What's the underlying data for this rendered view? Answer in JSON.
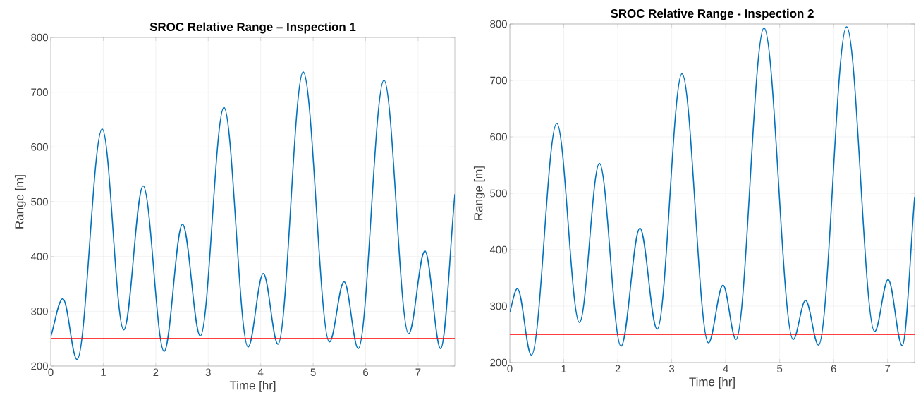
{
  "chart_data": [
    {
      "type": "line",
      "title": "SROC Relative Range – Inspection 1",
      "xlabel": "Time [hr]",
      "ylabel": "Range [m]",
      "xlim": [
        0,
        7.7
      ],
      "ylim": [
        200,
        800
      ],
      "xticks": [
        0,
        1,
        2,
        3,
        4,
        5,
        6,
        7
      ],
      "yticks": [
        200,
        300,
        400,
        500,
        600,
        700,
        800
      ],
      "grid": true,
      "series": [
        {
          "color": "#0072bd",
          "x": [
            0,
            0.23,
            0.5,
            0.98,
            1.39,
            1.76,
            2.16,
            2.51,
            2.85,
            3.3,
            3.76,
            4.05,
            4.33,
            4.81,
            5.31,
            5.59,
            5.86,
            6.35,
            6.82,
            7.13,
            7.43,
            7.7
          ],
          "values": [
            254,
            323,
            212,
            633,
            266,
            529,
            227,
            459,
            255,
            672,
            235,
            369,
            240,
            737,
            244,
            354,
            232,
            722,
            259,
            410,
            232,
            513
          ]
        }
      ],
      "ref_lines": [
        {
          "axis": "y",
          "value": 250,
          "color": "#ff0000"
        }
      ]
    },
    {
      "type": "line",
      "title": "SROC Relative Range - Inspection 2",
      "xlabel": "Time [hr]",
      "ylabel": "Range [m]",
      "xlim": [
        0,
        7.5
      ],
      "ylim": [
        200,
        800
      ],
      "xticks": [
        0,
        1,
        2,
        3,
        4,
        5,
        6,
        7
      ],
      "yticks": [
        200,
        300,
        400,
        500,
        600,
        700,
        800
      ],
      "grid": true,
      "series": [
        {
          "color": "#0072bd",
          "x": [
            0,
            0.14,
            0.4,
            0.87,
            1.29,
            1.66,
            2.06,
            2.41,
            2.73,
            3.19,
            3.68,
            3.95,
            4.19,
            4.71,
            5.25,
            5.48,
            5.72,
            6.24,
            6.76,
            7.01,
            7.27,
            7.5
          ],
          "values": [
            290,
            331,
            213,
            624,
            271,
            553,
            229,
            438,
            259,
            712,
            235,
            337,
            241,
            793,
            241,
            310,
            231,
            795,
            255,
            347,
            230,
            493
          ]
        }
      ],
      "ref_lines": [
        {
          "axis": "y",
          "value": 250,
          "color": "#ff0000"
        }
      ]
    }
  ]
}
